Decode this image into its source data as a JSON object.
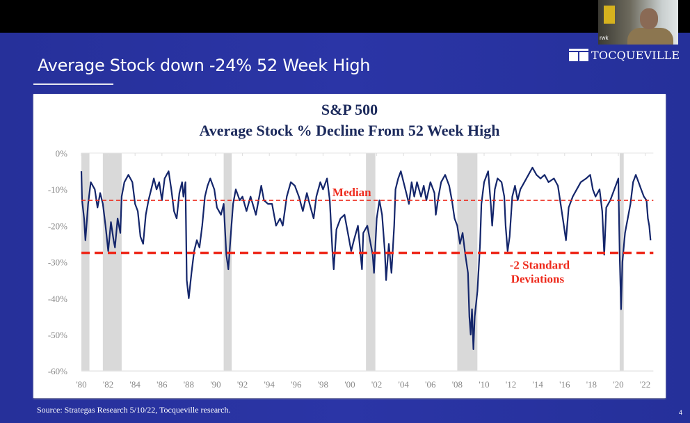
{
  "slide": {
    "title": "Average Stock down -24% 52 Week High",
    "logo_text": "TOCQUEVILLE",
    "source": "Source: Strategas Research 5/10/22, Tocqueville research.",
    "page_number": "4"
  },
  "webcam": {
    "participant_name": "rwk"
  },
  "colors": {
    "slide_bg": "#2a33a3",
    "series": "#14266b",
    "reference": "#ee2a1c",
    "recession": "#d9d9d9",
    "title": "#1c2a5c"
  },
  "chart_data": {
    "type": "line",
    "title": "S&P 500",
    "subtitle": "Average Stock % Decline From 52 Week High",
    "xlabel": "",
    "ylabel": "",
    "xlim": [
      1980,
      2022.4
    ],
    "ylim": [
      -60,
      0
    ],
    "y_ticks": [
      "0%",
      "-10%",
      "-20%",
      "-30%",
      "-40%",
      "-50%",
      "-60%"
    ],
    "y_tick_values": [
      0,
      -10,
      -20,
      -30,
      -40,
      -50,
      -60
    ],
    "x_ticks": [
      "'80",
      "'82",
      "'84",
      "'86",
      "'88",
      "'90",
      "'92",
      "'94",
      "'96",
      "'98",
      "'00",
      "'02",
      "'04",
      "'06",
      "'08",
      "'10",
      "'12",
      "'14",
      "'16",
      "'18",
      "'20",
      "'22"
    ],
    "x_tick_values": [
      1980,
      1982,
      1984,
      1986,
      1988,
      1990,
      1992,
      1994,
      1996,
      1998,
      2000,
      2002,
      2004,
      2006,
      2008,
      2010,
      2012,
      2014,
      2016,
      2018,
      2020,
      2022
    ],
    "grid": false,
    "reference_lines": [
      {
        "name": "Median",
        "label": "Median",
        "value": -13
      },
      {
        "name": "-2 Standard Deviations",
        "label_line1": "-2 Standard",
        "label_line2": "Deviations",
        "value": -27.5
      }
    ],
    "recessions": [
      [
        1980.0,
        1980.6
      ],
      [
        1981.6,
        1983.0
      ],
      [
        1990.6,
        1991.2
      ],
      [
        2001.2,
        2001.9
      ],
      [
        2008.0,
        2009.5
      ],
      [
        2020.1,
        2020.4
      ]
    ],
    "series": [
      {
        "name": "Average Stock % Decline From 52 Week High",
        "x": [
          1980.0,
          1980.05,
          1980.2,
          1980.3,
          1980.5,
          1980.7,
          1981.0,
          1981.2,
          1981.4,
          1981.6,
          1981.8,
          1982.0,
          1982.2,
          1982.4,
          1982.5,
          1982.7,
          1982.9,
          1983.0,
          1983.2,
          1983.5,
          1983.8,
          1984.0,
          1984.2,
          1984.4,
          1984.6,
          1984.8,
          1985.0,
          1985.2,
          1985.4,
          1985.6,
          1985.8,
          1986.0,
          1986.2,
          1986.5,
          1986.7,
          1986.9,
          1987.1,
          1987.3,
          1987.5,
          1987.6,
          1987.75,
          1987.85,
          1988.0,
          1988.2,
          1988.4,
          1988.6,
          1988.8,
          1989.0,
          1989.2,
          1989.4,
          1989.6,
          1989.9,
          1990.1,
          1990.4,
          1990.6,
          1990.8,
          1990.95,
          1991.1,
          1991.3,
          1991.5,
          1991.8,
          1992.0,
          1992.3,
          1992.6,
          1993.0,
          1993.4,
          1993.6,
          1993.9,
          1994.2,
          1994.5,
          1994.8,
          1995.0,
          1995.3,
          1995.6,
          1995.9,
          1996.2,
          1996.5,
          1996.8,
          1997.0,
          1997.3,
          1997.5,
          1997.8,
          1998.0,
          1998.3,
          1998.5,
          1998.7,
          1998.8,
          1999.0,
          1999.3,
          1999.6,
          1999.9,
          2000.1,
          2000.3,
          2000.6,
          2000.9,
          2001.0,
          2001.3,
          2001.5,
          2001.7,
          2001.8,
          2002.0,
          2002.2,
          2002.4,
          2002.6,
          2002.7,
          2002.9,
          2003.1,
          2003.3,
          2003.4,
          2003.6,
          2003.8,
          2004.0,
          2004.2,
          2004.4,
          2004.6,
          2004.8,
          2005.0,
          2005.3,
          2005.5,
          2005.7,
          2006.0,
          2006.3,
          2006.4,
          2006.6,
          2006.8,
          2007.1,
          2007.4,
          2007.6,
          2007.8,
          2008.0,
          2008.2,
          2008.4,
          2008.6,
          2008.8,
          2008.9,
          2009.0,
          2009.1,
          2009.2,
          2009.3,
          2009.5,
          2009.7,
          2009.8,
          2010.0,
          2010.3,
          2010.5,
          2010.6,
          2010.8,
          2011.0,
          2011.3,
          2011.5,
          2011.6,
          2011.75,
          2011.9,
          2012.1,
          2012.3,
          2012.5,
          2012.7,
          2013.0,
          2013.3,
          2013.6,
          2013.9,
          2014.2,
          2014.5,
          2014.8,
          2015.2,
          2015.5,
          2015.7,
          2015.9,
          2016.1,
          2016.3,
          2016.6,
          2016.9,
          2017.2,
          2017.6,
          2017.9,
          2018.1,
          2018.3,
          2018.6,
          2018.8,
          2018.95,
          2019.1,
          2019.4,
          2019.6,
          2019.9,
          2020.0,
          2020.1,
          2020.2,
          2020.3,
          2020.5,
          2020.7,
          2020.9,
          2021.1,
          2021.3,
          2021.5,
          2021.7,
          2021.9,
          2022.1,
          2022.2,
          2022.3,
          2022.4
        ],
        "y": [
          -5,
          -13,
          -18,
          -24,
          -14,
          -8,
          -10,
          -15,
          -11,
          -14,
          -20,
          -27,
          -19,
          -24,
          -26,
          -18,
          -22,
          -12,
          -8,
          -6,
          -8,
          -14,
          -16,
          -23,
          -25,
          -17,
          -13,
          -10,
          -7,
          -10,
          -8,
          -13,
          -7,
          -5,
          -10,
          -16,
          -18,
          -11,
          -8,
          -12,
          -8,
          -35,
          -40,
          -33,
          -27,
          -24,
          -26,
          -20,
          -12,
          -9,
          -7,
          -10,
          -15,
          -17,
          -14,
          -28,
          -32,
          -24,
          -14,
          -10,
          -13,
          -12,
          -16,
          -12,
          -17,
          -9,
          -13,
          -14,
          -14,
          -20,
          -18,
          -20,
          -12,
          -8,
          -9,
          -12,
          -16,
          -11,
          -14,
          -18,
          -12,
          -8,
          -10,
          -7,
          -13,
          -27,
          -32,
          -21,
          -18,
          -17,
          -23,
          -27,
          -24,
          -20,
          -32,
          -22,
          -20,
          -24,
          -28,
          -33,
          -18,
          -13,
          -17,
          -27,
          -35,
          -25,
          -33,
          -20,
          -10,
          -7,
          -5,
          -8,
          -11,
          -14,
          -8,
          -12,
          -8,
          -12,
          -9,
          -13,
          -8,
          -11,
          -17,
          -12,
          -8,
          -6,
          -9,
          -13,
          -18,
          -20,
          -25,
          -22,
          -28,
          -33,
          -45,
          -50,
          -43,
          -54,
          -45,
          -38,
          -25,
          -14,
          -8,
          -5,
          -14,
          -20,
          -10,
          -7,
          -8,
          -12,
          -20,
          -27,
          -23,
          -12,
          -9,
          -13,
          -10,
          -8,
          -6,
          -4,
          -6,
          -7,
          -6,
          -8,
          -7,
          -9,
          -14,
          -19,
          -24,
          -15,
          -12,
          -10,
          -8,
          -7,
          -6,
          -10,
          -12,
          -10,
          -16,
          -28,
          -15,
          -13,
          -11,
          -8,
          -7,
          -28,
          -43,
          -30,
          -22,
          -18,
          -14,
          -8,
          -6,
          -8,
          -10,
          -12,
          -13,
          -18,
          -20,
          -24
        ]
      }
    ]
  }
}
